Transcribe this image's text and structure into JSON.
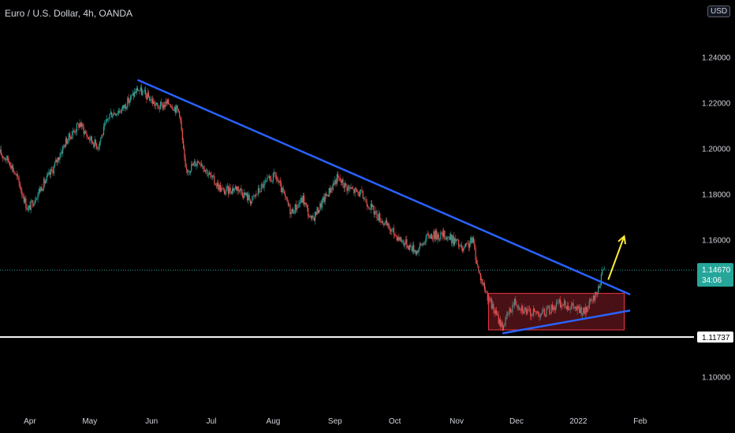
{
  "header": {
    "title": "Euro / U.S. Dollar, 4h, OANDA",
    "currency_button": "USD"
  },
  "colors": {
    "background": "#000000",
    "up_candle": "#26a69a",
    "down_candle": "#ef5350",
    "downtrend_line": "#2962ff",
    "support_line": "#ffffff",
    "consolidation_box": "#f23645",
    "projection_arrow": "#ffeb3b",
    "axis_text": "#d1d4dc",
    "price_label_bg": "#26a69a"
  },
  "chart_data": {
    "type": "candlestick",
    "instrument": "EUR/USD",
    "timeframe": "4h",
    "x_range": [
      "2021-03-17",
      "2022-02-28"
    ],
    "ylim": [
      1.085,
      1.265
    ],
    "x_ticks": [
      {
        "label": "Apr",
        "date": "2021-04-01"
      },
      {
        "label": "May",
        "date": "2021-05-01"
      },
      {
        "label": "Jun",
        "date": "2021-06-01"
      },
      {
        "label": "Jul",
        "date": "2021-07-01"
      },
      {
        "label": "Aug",
        "date": "2021-08-01"
      },
      {
        "label": "Sep",
        "date": "2021-09-01"
      },
      {
        "label": "Oct",
        "date": "2021-10-01"
      },
      {
        "label": "Nov",
        "date": "2021-11-01"
      },
      {
        "label": "Dec",
        "date": "2021-12-01"
      },
      {
        "label": "2022",
        "date": "2022-01-01"
      },
      {
        "label": "Feb",
        "date": "2022-02-01"
      }
    ],
    "y_ticks": [
      {
        "label": "1.24000",
        "value": 1.24
      },
      {
        "label": "1.22000",
        "value": 1.22
      },
      {
        "label": "1.20000",
        "value": 1.2
      },
      {
        "label": "1.18000",
        "value": 1.18
      },
      {
        "label": "1.16000",
        "value": 1.16
      },
      {
        "label": "1.10000",
        "value": 1.1
      }
    ],
    "price_path": [
      [
        "2021-03-17",
        1.198
      ],
      [
        "2021-03-22",
        1.194
      ],
      [
        "2021-03-26",
        1.186
      ],
      [
        "2021-03-31",
        1.173
      ],
      [
        "2021-04-06",
        1.182
      ],
      [
        "2021-04-12",
        1.19
      ],
      [
        "2021-04-19",
        1.203
      ],
      [
        "2021-04-26",
        1.211
      ],
      [
        "2021-04-30",
        1.205
      ],
      [
        "2021-05-05",
        1.201
      ],
      [
        "2021-05-11",
        1.215
      ],
      [
        "2021-05-17",
        1.217
      ],
      [
        "2021-05-25",
        1.226
      ],
      [
        "2021-05-31",
        1.222
      ],
      [
        "2021-06-04",
        1.218
      ],
      [
        "2021-06-10",
        1.22
      ],
      [
        "2021-06-15",
        1.216
      ],
      [
        "2021-06-18",
        1.19
      ],
      [
        "2021-06-25",
        1.195
      ],
      [
        "2021-07-01",
        1.187
      ],
      [
        "2021-07-07",
        1.181
      ],
      [
        "2021-07-14",
        1.183
      ],
      [
        "2021-07-21",
        1.177
      ],
      [
        "2021-07-27",
        1.184
      ],
      [
        "2021-08-02",
        1.188
      ],
      [
        "2021-08-10",
        1.172
      ],
      [
        "2021-08-16",
        1.178
      ],
      [
        "2021-08-20",
        1.168
      ],
      [
        "2021-08-26",
        1.177
      ],
      [
        "2021-09-02",
        1.187
      ],
      [
        "2021-09-07",
        1.183
      ],
      [
        "2021-09-14",
        1.18
      ],
      [
        "2021-09-20",
        1.173
      ],
      [
        "2021-09-28",
        1.165
      ],
      [
        "2021-10-04",
        1.16
      ],
      [
        "2021-10-12",
        1.155
      ],
      [
        "2021-10-18",
        1.162
      ],
      [
        "2021-10-26",
        1.162
      ],
      [
        "2021-11-01",
        1.159
      ],
      [
        "2021-11-04",
        1.155
      ],
      [
        "2021-11-09",
        1.16
      ],
      [
        "2021-11-12",
        1.146
      ],
      [
        "2021-11-17",
        1.134
      ],
      [
        "2021-11-22",
        1.125
      ],
      [
        "2021-11-24",
        1.122
      ],
      [
        "2021-11-30",
        1.133
      ],
      [
        "2021-12-07",
        1.128
      ],
      [
        "2021-12-15",
        1.128
      ],
      [
        "2021-12-22",
        1.132
      ],
      [
        "2021-12-28",
        1.131
      ],
      [
        "2022-01-04",
        1.128
      ],
      [
        "2022-01-10",
        1.136
      ],
      [
        "2022-01-13",
        1.145
      ],
      [
        "2022-01-14",
        1.1467
      ]
    ],
    "annotations": {
      "downtrend_line": {
        "from": [
          "2021-05-25",
          1.23
        ],
        "to": [
          "2022-01-27",
          1.136
        ]
      },
      "rising_support_line": {
        "from": [
          "2021-11-24",
          1.119
        ],
        "to": [
          "2022-01-27",
          1.129
        ]
      },
      "support_line": {
        "value": 1.11737
      },
      "consolidation_box": {
        "from": [
          "2021-11-17",
          1.1205
        ],
        "to": [
          "2022-01-24",
          1.1365
        ]
      },
      "projection_arrow": {
        "from": [
          "2022-01-16",
          1.1425
        ],
        "to": [
          "2022-01-24",
          1.1615
        ]
      },
      "current_price_line": {
        "value": 1.1467
      }
    },
    "price_labels": [
      {
        "name": "current",
        "value": 1.1467,
        "label": "1.14670",
        "countdown": "34:06"
      },
      {
        "name": "support",
        "value": 1.11737,
        "label": "1.11737"
      }
    ],
    "grid": false,
    "legend": "none"
  }
}
